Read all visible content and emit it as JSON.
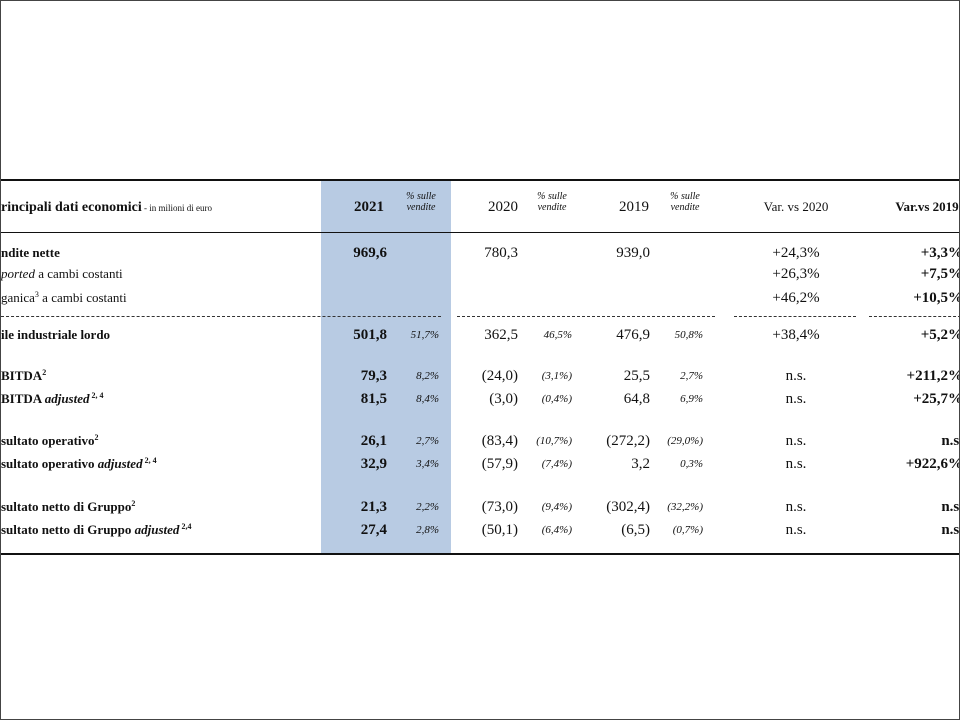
{
  "table": {
    "title": "rincipali dati economici",
    "unit": " - in milioni di euro",
    "headers": [
      {
        "text": "2021",
        "kind": "year",
        "bold": true
      },
      {
        "text": "% sulle vendite",
        "kind": "sub"
      },
      {
        "text": "2020",
        "kind": "year"
      },
      {
        "text": "% sulle vendite",
        "kind": "sub"
      },
      {
        "text": "2019",
        "kind": "year"
      },
      {
        "text": "% sulle vendite",
        "kind": "sub"
      },
      {
        "text": "Var. vs 2020",
        "kind": "var"
      },
      {
        "text": "Var.vs 2019",
        "kind": "var",
        "bold": true
      }
    ],
    "rows": [
      {
        "label": [
          {
            "text": "ndite nette"
          }
        ],
        "bold": true,
        "cells": [
          "969,6",
          null,
          "780,3",
          null,
          "939,0",
          null,
          "+24,3%",
          "+3,3%"
        ]
      },
      {
        "label": [
          {
            "text": "ported",
            "italic": true
          },
          {
            "text": " a cambi costanti"
          }
        ],
        "cells": [
          null,
          null,
          null,
          null,
          null,
          null,
          "+26,3%",
          "+7,5%"
        ]
      },
      {
        "label": [
          {
            "text": "ganica"
          },
          {
            "text": "3",
            "sup": true
          },
          {
            "text": " a cambi costanti"
          }
        ],
        "cells": [
          null,
          null,
          null,
          null,
          null,
          null,
          "+46,2%",
          "+10,5%"
        ]
      },
      {
        "label": [
          {
            "text": "ile industriale lordo"
          }
        ],
        "bold": true,
        "cells": [
          "501,8",
          "51,7%",
          "362,5",
          "46,5%",
          "476,9",
          "50,8%",
          "+38,4%",
          "+5,2%"
        ]
      },
      {
        "label": [
          {
            "text": "BITDA"
          },
          {
            "text": "2",
            "sup": true
          }
        ],
        "bold": true,
        "cells": [
          "79,3",
          "8,2%",
          "(24,0)",
          "(3,1%)",
          "25,5",
          "2,7%",
          "n.s.",
          "+211,2%"
        ]
      },
      {
        "label": [
          {
            "text": "BITDA "
          },
          {
            "text": "adjusted",
            "italic": true
          },
          {
            "text": " 2, 4",
            "sup": true
          }
        ],
        "bold": true,
        "cells": [
          "81,5",
          "8,4%",
          "(3,0)",
          "(0,4%)",
          "64,8",
          "6,9%",
          "n.s.",
          "+25,7%"
        ]
      },
      {
        "label": [
          {
            "text": "sultato operativo"
          },
          {
            "text": "2",
            "sup": true
          }
        ],
        "bold": true,
        "cells": [
          "26,1",
          "2,7%",
          "(83,4)",
          "(10,7%)",
          "(272,2)",
          "(29,0%)",
          "n.s.",
          "n.s."
        ]
      },
      {
        "label": [
          {
            "text": "sultato operativo "
          },
          {
            "text": "adjusted",
            "italic": true
          },
          {
            "text": " 2, 4",
            "sup": true
          }
        ],
        "bold": true,
        "cells": [
          "32,9",
          "3,4%",
          "(57,9)",
          "(7,4%)",
          "3,2",
          "0,3%",
          "n.s.",
          "+922,6%"
        ]
      },
      {
        "label": [
          {
            "text": "sultato netto di Gruppo"
          },
          {
            "text": "2",
            "sup": true
          }
        ],
        "bold": true,
        "cells": [
          "21,3",
          "2,2%",
          "(73,0)",
          "(9,4%)",
          "(302,4)",
          "(32,2%)",
          "n.s.",
          "n.s."
        ]
      },
      {
        "label": [
          {
            "text": "sultato netto di Gruppo "
          },
          {
            "text": "adjusted",
            "italic": true
          },
          {
            "text": " 2,4",
            "sup": true
          }
        ],
        "bold": true,
        "cells": [
          "27,4",
          "2,8%",
          "(50,1)",
          "(6,4%)",
          "(6,5)",
          "(0,7%)",
          "n.s.",
          "n.s."
        ]
      }
    ]
  }
}
